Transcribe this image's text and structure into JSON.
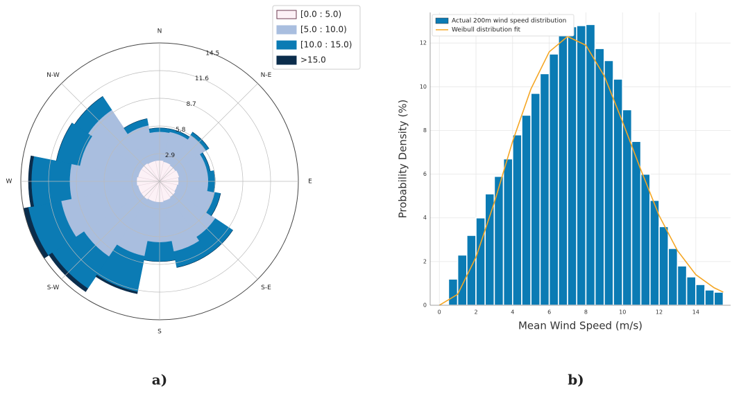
{
  "chart_data": [
    {
      "type": "windrose",
      "caption": "a)",
      "categories": [
        "N",
        null,
        "N-E",
        null,
        "E",
        null,
        "S-E",
        null,
        "S",
        null,
        "S-W",
        null,
        "W",
        null,
        "N-W",
        null
      ],
      "series": [
        {
          "name": "[0.0 : 5.0)",
          "color": "#fcf1f6",
          "values": [
            2.2,
            2.1,
            2.0,
            2.1,
            2.0,
            1.9,
            2.0,
            2.1,
            2.2,
            2.2,
            2.3,
            2.3,
            2.4,
            2.3,
            2.3,
            2.2
          ]
        },
        {
          "name": "[5.0 : 10.0)",
          "color": "#a9bedf",
          "values": [
            3.0,
            3.2,
            3.8,
            3.0,
            3.1,
            4.0,
            5.0,
            5.4,
            4.2,
            5.8,
            7.2,
            8.2,
            7.0,
            6.2,
            6.7,
            3.8
          ]
        },
        {
          "name": "[10.0 : 15.0)",
          "color": "#0b7bb4",
          "values": [
            0.4,
            0.3,
            0.4,
            0.3,
            0.7,
            0.6,
            2.2,
            1.7,
            2.0,
            3.8,
            4.0,
            3.5,
            4.0,
            2.5,
            1.7,
            0.7
          ]
        },
        {
          "name": ">15.0",
          "color": "#0b2d4c",
          "values": [
            0,
            0,
            0,
            0,
            0,
            0,
            0,
            0,
            0,
            0.2,
            0.4,
            0.5,
            0.3,
            0,
            0,
            0
          ]
        }
      ],
      "ylim": [
        0,
        14.5
      ],
      "yticks": [
        2.9,
        5.8,
        8.7,
        11.6,
        14.5
      ],
      "grid": true,
      "legend": "upper right"
    },
    {
      "type": "histogram",
      "caption": "b)",
      "xlabel": "Mean Wind Speed (m/s)",
      "ylabel": "Probability Density (%)",
      "bins": [
        0.5,
        1.0,
        1.5,
        2.0,
        2.5,
        3.0,
        3.5,
        4.0,
        4.5,
        5.0,
        5.5,
        6.0,
        6.5,
        7.0,
        7.5,
        8.0,
        8.5,
        9.0,
        9.5,
        10.0,
        10.5,
        11.0,
        11.5,
        12.0,
        12.5,
        13.0,
        13.5,
        14.0,
        14.5,
        15.0,
        15.5
      ],
      "series": [
        {
          "name": "Actual 200m wind speed distribution",
          "color": "#0b7bb4",
          "values": [
            1.2,
            2.3,
            3.2,
            4.0,
            5.1,
            5.9,
            6.7,
            7.8,
            8.7,
            9.7,
            10.6,
            11.5,
            12.4,
            12.75,
            12.8,
            12.85,
            11.75,
            11.2,
            10.35,
            8.95,
            7.5,
            6.0,
            4.8,
            3.6,
            2.6,
            1.8,
            1.3,
            0.95,
            0.7,
            0.6
          ]
        },
        {
          "name": "Weibull distribution fit",
          "color": "#f5a623",
          "x": [
            0,
            1,
            2,
            3,
            4,
            5,
            6,
            7,
            8,
            9,
            10,
            11,
            12,
            13,
            14,
            15,
            15.5
          ],
          "values": [
            0,
            0.5,
            2.2,
            4.7,
            7.5,
            9.9,
            11.6,
            12.3,
            11.9,
            10.5,
            8.4,
            6.2,
            4.1,
            2.5,
            1.4,
            0.8,
            0.6
          ]
        }
      ],
      "xlim": [
        -0.5,
        15.9
      ],
      "xticks": [
        0,
        2,
        4,
        6,
        8,
        10,
        12,
        14
      ],
      "ylim": [
        0,
        13.4
      ],
      "yticks": [
        0,
        2,
        4,
        6,
        8,
        10,
        12
      ],
      "grid": true,
      "legend": "upper left"
    }
  ]
}
